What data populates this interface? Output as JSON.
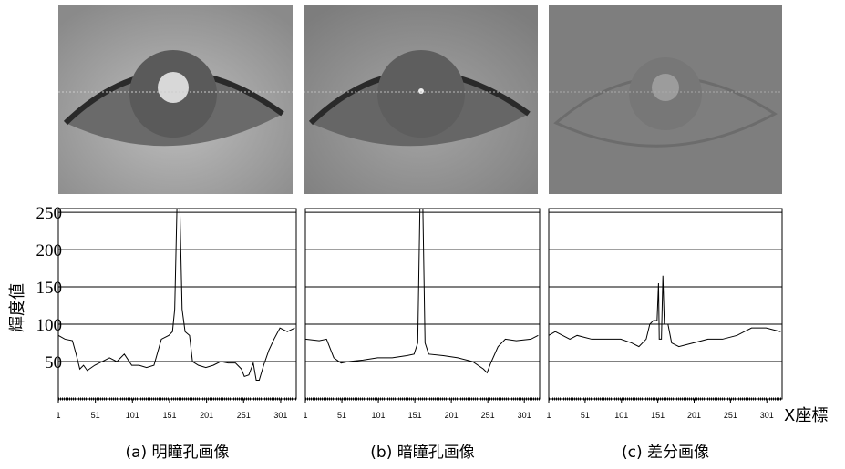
{
  "chart_data": [
    {
      "type": "line",
      "caption": "(a) 明瞳孔画像",
      "ylabel": "輝度値",
      "ytick_labels": true,
      "x": [
        1,
        10,
        20,
        25,
        30,
        35,
        40,
        50,
        60,
        70,
        80,
        90,
        100,
        110,
        120,
        130,
        140,
        150,
        155,
        158,
        161,
        165,
        168,
        172,
        178,
        182,
        190,
        200,
        210,
        220,
        230,
        240,
        248,
        252,
        258,
        264,
        268,
        272,
        278,
        285,
        292,
        300,
        310,
        320
      ],
      "values": [
        85,
        80,
        78,
        60,
        40,
        45,
        38,
        45,
        50,
        55,
        50,
        60,
        45,
        45,
        42,
        45,
        80,
        85,
        90,
        120,
        255,
        255,
        120,
        90,
        85,
        50,
        45,
        42,
        45,
        50,
        48,
        48,
        40,
        30,
        32,
        48,
        25,
        25,
        45,
        65,
        80,
        95,
        90,
        95
      ],
      "color": "#000000",
      "xlim": [
        1,
        322
      ],
      "ylim": [
        0,
        255
      ],
      "xticks": [
        1,
        51,
        101,
        151,
        201,
        251,
        301
      ],
      "yticks": [
        50,
        100,
        150,
        200,
        250
      ],
      "grid": true
    },
    {
      "type": "line",
      "caption": "(b) 暗瞳孔画像",
      "ytick_labels": false,
      "x": [
        1,
        20,
        30,
        40,
        50,
        60,
        80,
        100,
        120,
        140,
        150,
        155,
        158,
        162,
        165,
        170,
        190,
        210,
        230,
        245,
        250,
        255,
        265,
        275,
        290,
        310,
        320
      ],
      "values": [
        80,
        78,
        80,
        55,
        48,
        50,
        52,
        55,
        55,
        58,
        60,
        75,
        255,
        255,
        75,
        60,
        58,
        55,
        50,
        40,
        35,
        48,
        70,
        80,
        78,
        80,
        85
      ],
      "color": "#000000",
      "xlim": [
        1,
        322
      ],
      "ylim": [
        0,
        255
      ],
      "xticks": [
        1,
        51,
        101,
        151,
        201,
        251,
        301
      ],
      "yticks": [
        50,
        100,
        150,
        200,
        250
      ],
      "grid": true
    },
    {
      "type": "line",
      "caption": "(c) 差分画像",
      "xlabel": "X座標",
      "ytick_labels": false,
      "x": [
        1,
        10,
        20,
        30,
        40,
        60,
        80,
        100,
        115,
        125,
        135,
        140,
        145,
        150,
        152,
        153,
        156,
        158,
        160,
        165,
        170,
        180,
        200,
        220,
        240,
        260,
        270,
        280,
        300,
        320
      ],
      "values": [
        85,
        90,
        85,
        80,
        85,
        80,
        80,
        80,
        75,
        70,
        80,
        100,
        105,
        105,
        155,
        80,
        80,
        165,
        100,
        100,
        75,
        70,
        75,
        80,
        80,
        85,
        90,
        95,
        95,
        90
      ],
      "color": "#000000",
      "xlim": [
        1,
        322
      ],
      "ylim": [
        0,
        255
      ],
      "xticks": [
        1,
        51,
        101,
        151,
        201,
        251,
        301
      ],
      "yticks": [
        50,
        100,
        150,
        200,
        250
      ],
      "grid": true
    }
  ]
}
